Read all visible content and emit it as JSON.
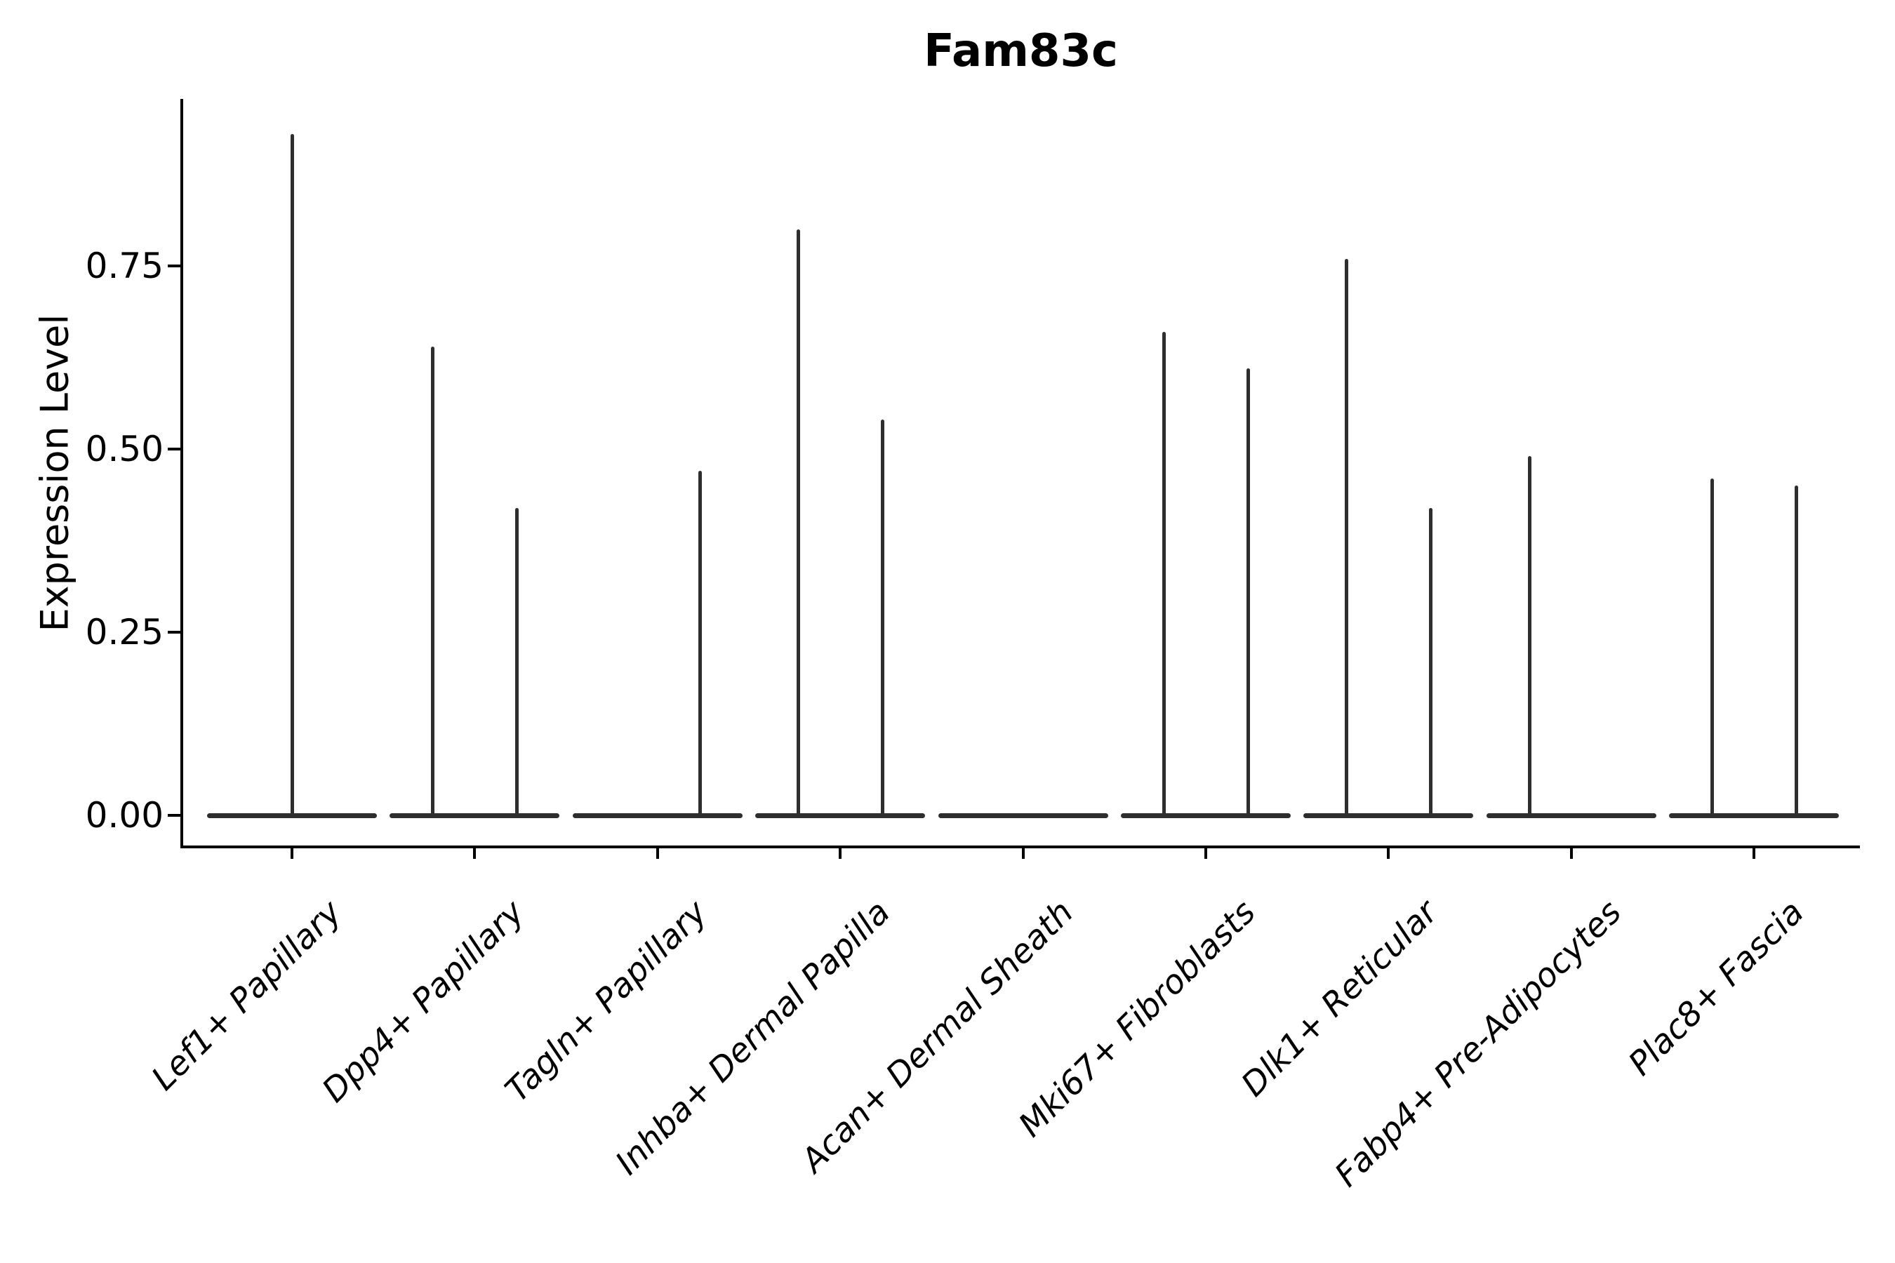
{
  "figure": {
    "background": "#ffffff"
  },
  "chart_data": {
    "type": "violin",
    "title": "Fam83c",
    "ylabel": "Expression Level",
    "xlabel": "",
    "ylim": [
      -0.043,
      0.988
    ],
    "ytick_labels": [
      "0.00",
      "0.25",
      "0.50",
      "0.75"
    ],
    "ytick_values": [
      0,
      0.25,
      0.5,
      0.75
    ],
    "grid": false,
    "legend": false,
    "categories": [
      "Lef1+ Papillary",
      "Dpp4+ Papillary",
      "Tagln+ Papillary",
      "Inhba+ Dermal Papilla",
      "Acan+ Dermal Sheath",
      "Mki67+ Fibroblasts",
      "Dlk1+ Reticular",
      "Fabp4+ Pre-Adipocytes",
      "Plac8+ Fascia"
    ],
    "violins": [
      {
        "category": "Lef1+ Papillary",
        "body_value": 0,
        "spikes": [
          {
            "side": "center",
            "max": 0.93
          }
        ]
      },
      {
        "category": "Dpp4+ Papillary",
        "body_value": 0,
        "spikes": [
          {
            "side": "left",
            "max": 0.64
          },
          {
            "side": "right",
            "max": 0.42
          }
        ]
      },
      {
        "category": "Tagln+ Papillary",
        "body_value": 0,
        "spikes": [
          {
            "side": "right",
            "max": 0.47
          }
        ]
      },
      {
        "category": "Inhba+ Dermal Papilla",
        "body_value": 0,
        "spikes": [
          {
            "side": "left",
            "max": 0.8
          },
          {
            "side": "right",
            "max": 0.54
          }
        ]
      },
      {
        "category": "Acan+ Dermal Sheath",
        "body_value": 0,
        "spikes": []
      },
      {
        "category": "Mki67+ Fibroblasts",
        "body_value": 0,
        "spikes": [
          {
            "side": "left",
            "max": 0.66
          },
          {
            "side": "right",
            "max": 0.61
          }
        ]
      },
      {
        "category": "Dlk1+ Reticular",
        "body_value": 0,
        "spikes": [
          {
            "side": "left",
            "max": 0.76
          },
          {
            "side": "right",
            "max": 0.42
          }
        ]
      },
      {
        "category": "Fabp4+ Pre-Adipocytes",
        "body_value": 0,
        "spikes": [
          {
            "side": "left",
            "max": 0.49
          }
        ]
      },
      {
        "category": "Plac8+ Fascia",
        "body_value": 0,
        "spikes": [
          {
            "side": "left",
            "max": 0.46
          },
          {
            "side": "right",
            "max": 0.45
          }
        ]
      }
    ],
    "colors": {
      "violin": "#2e2e2e",
      "axis": "#000000",
      "text": "#000000"
    }
  }
}
